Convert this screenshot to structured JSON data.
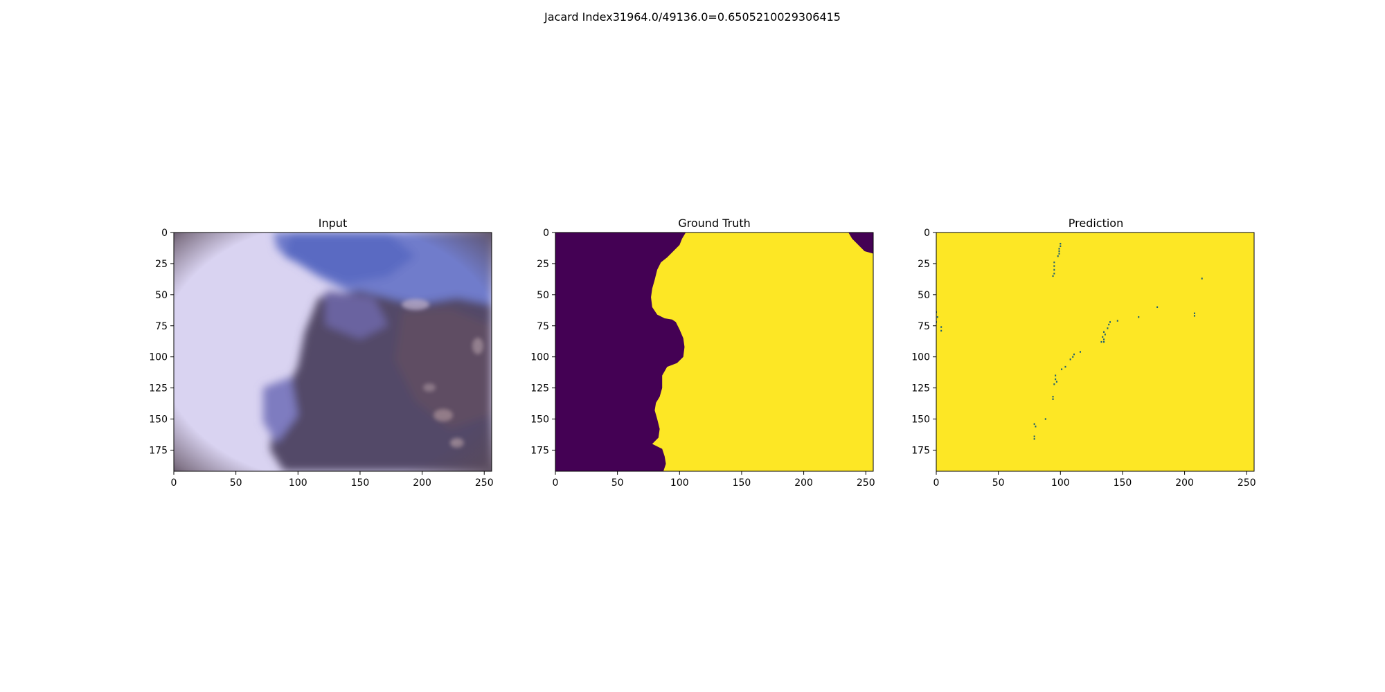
{
  "suptitle": "Jacard Index31964.0/49136.0=0.6505210029306415",
  "chart_data": [
    {
      "type": "heatmap",
      "title": "Input",
      "content": "RGB dermoscopy image",
      "colors": {
        "light_region": "#d8d2f0",
        "blue_region": "#6a76c4",
        "dark_lesion": "#4a4466",
        "vignette": "#5a4a58"
      },
      "xlim": [
        0,
        256
      ],
      "ylim": [
        192,
        0
      ],
      "xticks": [
        0,
        50,
        100,
        150,
        200,
        250
      ],
      "yticks": [
        0,
        25,
        50,
        75,
        100,
        125,
        150,
        175
      ]
    },
    {
      "type": "heatmap",
      "title": "Ground Truth",
      "colormap": {
        "0": "#440154",
        "1": "#fde725"
      },
      "boundary": [
        [
          105,
          0
        ],
        [
          102,
          5
        ],
        [
          100,
          10
        ],
        [
          95,
          15
        ],
        [
          90,
          20
        ],
        [
          85,
          24
        ],
        [
          82,
          30
        ],
        [
          80,
          38
        ],
        [
          78,
          45
        ],
        [
          77,
          52
        ],
        [
          78,
          60
        ],
        [
          82,
          66
        ],
        [
          88,
          69
        ],
        [
          94,
          70
        ],
        [
          97,
          72
        ],
        [
          100,
          78
        ],
        [
          103,
          85
        ],
        [
          104,
          92
        ],
        [
          103,
          100
        ],
        [
          98,
          105
        ],
        [
          90,
          108
        ],
        [
          86,
          115
        ],
        [
          86,
          125
        ],
        [
          84,
          132
        ],
        [
          81,
          137
        ],
        [
          80,
          143
        ],
        [
          82,
          150
        ],
        [
          84,
          158
        ],
        [
          83,
          165
        ],
        [
          80,
          168
        ],
        [
          78,
          170
        ],
        [
          82,
          172
        ],
        [
          86,
          174
        ],
        [
          88,
          180
        ],
        [
          89,
          186
        ],
        [
          87,
          192
        ]
      ],
      "top_right_cutout": [
        [
          236,
          0
        ],
        [
          256,
          0
        ],
        [
          256,
          17
        ],
        [
          249,
          15
        ],
        [
          244,
          10
        ],
        [
          239,
          5
        ]
      ],
      "xlim": [
        0,
        256
      ],
      "ylim": [
        192,
        0
      ],
      "xticks": [
        0,
        50,
        100,
        150,
        200,
        250
      ],
      "yticks": [
        0,
        25,
        50,
        75,
        100,
        125,
        150,
        175
      ]
    },
    {
      "type": "heatmap",
      "title": "Prediction",
      "colormap": {
        "0": "#1f6070",
        "1": "#fde725"
      },
      "background_value": 1,
      "points": [
        [
          100,
          9
        ],
        [
          100,
          11
        ],
        [
          99,
          13
        ],
        [
          99,
          15
        ],
        [
          99,
          17
        ],
        [
          98,
          19
        ],
        [
          95,
          24
        ],
        [
          95,
          27
        ],
        [
          95,
          30
        ],
        [
          95,
          33
        ],
        [
          94,
          35
        ],
        [
          0,
          64
        ],
        [
          1,
          68
        ],
        [
          0,
          72
        ],
        [
          4,
          76
        ],
        [
          4,
          79
        ],
        [
          208,
          65
        ],
        [
          208,
          67
        ],
        [
          178,
          60
        ],
        [
          163,
          68
        ],
        [
          146,
          71
        ],
        [
          140,
          72
        ],
        [
          139,
          74
        ],
        [
          138,
          77
        ],
        [
          135,
          80
        ],
        [
          136,
          82
        ],
        [
          134,
          84
        ],
        [
          135,
          86
        ],
        [
          135,
          88
        ],
        [
          133,
          88
        ],
        [
          116,
          96
        ],
        [
          111,
          98
        ],
        [
          110,
          100
        ],
        [
          108,
          102
        ],
        [
          104,
          108
        ],
        [
          101,
          110
        ],
        [
          96,
          115
        ],
        [
          96,
          118
        ],
        [
          97,
          120
        ],
        [
          95,
          122
        ],
        [
          94,
          132
        ],
        [
          94,
          134
        ],
        [
          88,
          150
        ],
        [
          79,
          154
        ],
        [
          80,
          156
        ],
        [
          79,
          164
        ],
        [
          79,
          166
        ],
        [
          214,
          37
        ]
      ],
      "xlim": [
        0,
        256
      ],
      "ylim": [
        192,
        0
      ],
      "xticks": [
        0,
        50,
        100,
        150,
        200,
        250
      ],
      "yticks": [
        0,
        25,
        50,
        75,
        100,
        125,
        150,
        175
      ]
    }
  ]
}
